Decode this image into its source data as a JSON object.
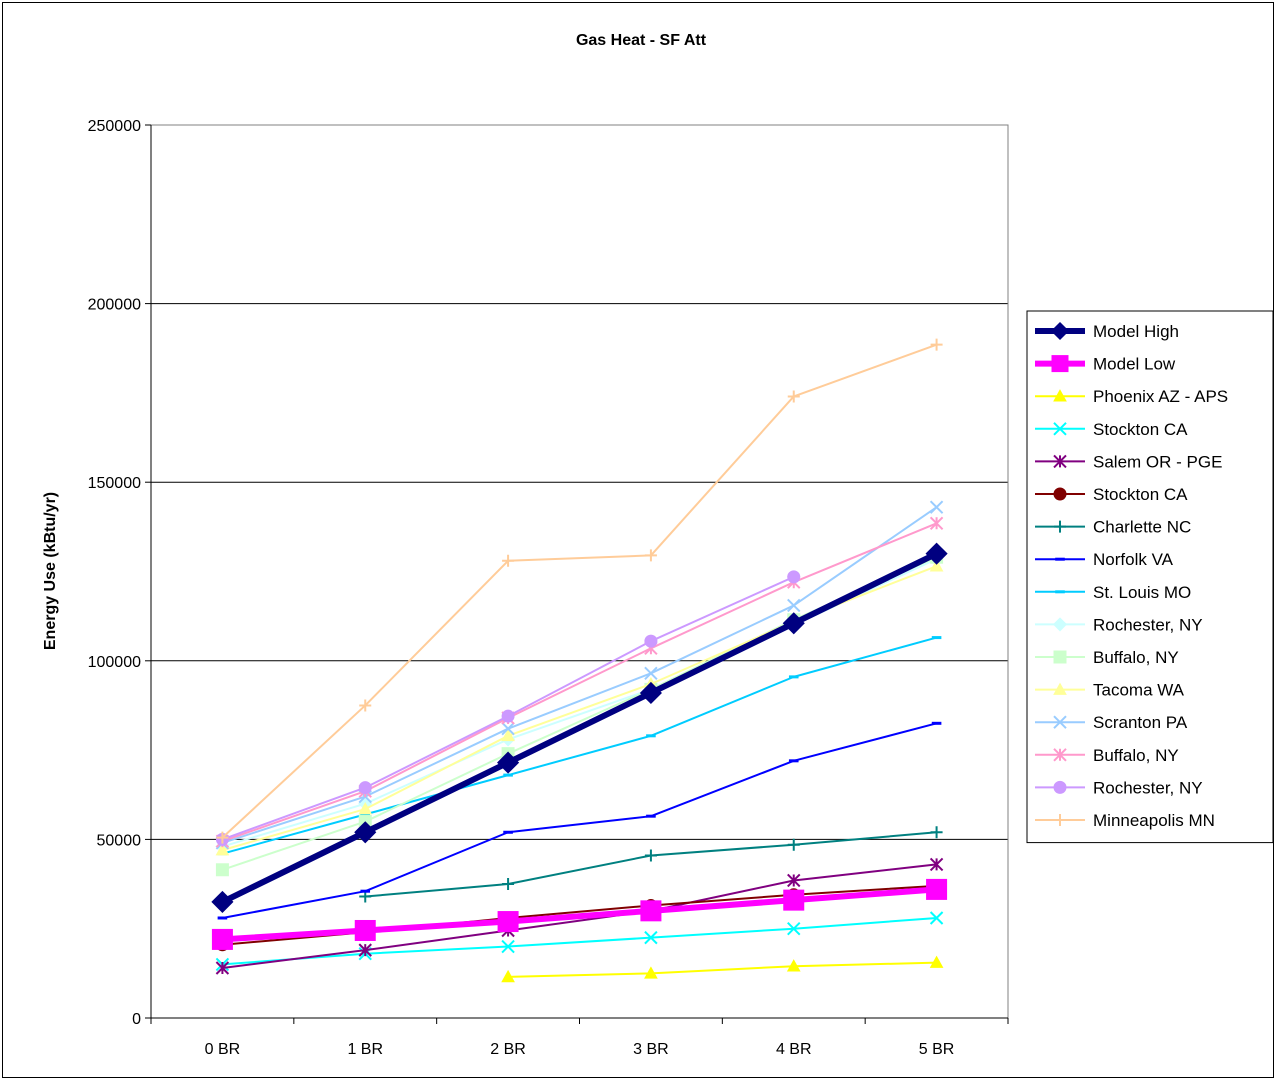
{
  "chart_data": {
    "type": "line",
    "title": "Gas Heat - SF Att",
    "xlabel": "",
    "ylabel": "Energy Use (kBtu/yr)",
    "categories": [
      "0 BR",
      "1 BR",
      "2 BR",
      "3 BR",
      "4 BR",
      "5 BR"
    ],
    "ylim": [
      0,
      250000
    ],
    "yticks": [
      0,
      50000,
      100000,
      150000,
      200000,
      250000
    ],
    "ytick_labels": [
      "0",
      "50000",
      "100000",
      "150000",
      "200000",
      "250000"
    ],
    "grid": "horizontal",
    "legend_position": "right",
    "series": [
      {
        "name": "Model High",
        "color": "#000080",
        "marker": "diamond",
        "bold": true,
        "values": [
          32500,
          52000,
          71500,
          91000,
          110500,
          130000
        ]
      },
      {
        "name": "Model Low",
        "color": "#ff00ff",
        "marker": "square",
        "bold": true,
        "values": [
          22000,
          24500,
          27000,
          30000,
          33000,
          36000
        ]
      },
      {
        "name": "Phoenix AZ - APS",
        "color": "#ffff00",
        "marker": "triangle",
        "values": [
          null,
          null,
          11500,
          12500,
          14500,
          15500
        ]
      },
      {
        "name": "Stockton CA",
        "color": "#00ffff",
        "marker": "x",
        "values": [
          15000,
          18000,
          20000,
          22500,
          25000,
          28000
        ]
      },
      {
        "name": "Salem OR - PGE",
        "color": "#800080",
        "marker": "asterisk",
        "values": [
          14000,
          19000,
          24500,
          30000,
          38500,
          43000
        ]
      },
      {
        "name": "Stockton CA",
        "color": "#800000",
        "marker": "circle",
        "values": [
          20500,
          24000,
          28000,
          31500,
          34500,
          37000
        ]
      },
      {
        "name": "Charlette NC",
        "color": "#008080",
        "marker": "plus",
        "values": [
          null,
          34000,
          37500,
          45500,
          48500,
          52000
        ]
      },
      {
        "name": "Norfolk VA",
        "color": "#0000ff",
        "marker": "dash",
        "values": [
          28000,
          35500,
          52000,
          56500,
          72000,
          82500
        ]
      },
      {
        "name": "St. Louis MO",
        "color": "#00ccff",
        "marker": "dash",
        "values": [
          46000,
          57000,
          68000,
          79000,
          95500,
          106500
        ]
      },
      {
        "name": "Rochester, NY",
        "color": "#ccffff",
        "marker": "diamond",
        "values": [
          48000,
          60000,
          78000,
          92000,
          110000,
          128500
        ]
      },
      {
        "name": "Buffalo, NY",
        "color": "#ccffcc",
        "marker": "square",
        "values": [
          41500,
          55000,
          74000,
          92000,
          111500,
          129000
        ]
      },
      {
        "name": "Tacoma WA",
        "color": "#ffff99",
        "marker": "triangle",
        "values": [
          47000,
          58500,
          79000,
          93500,
          111000,
          126500
        ]
      },
      {
        "name": "Scranton PA",
        "color": "#99ccff",
        "marker": "x",
        "values": [
          49000,
          62000,
          81000,
          96500,
          115500,
          143000
        ]
      },
      {
        "name": "Buffalo, NY",
        "color": "#ff99cc",
        "marker": "asterisk",
        "values": [
          49500,
          63500,
          84000,
          103500,
          122000,
          138500
        ]
      },
      {
        "name": "Rochester, NY",
        "color": "#cc99ff",
        "marker": "circle",
        "values": [
          50000,
          64500,
          84500,
          105500,
          123500,
          null
        ]
      },
      {
        "name": "Minneapolis MN",
        "color": "#ffcc99",
        "marker": "plus",
        "values": [
          50500,
          87500,
          128000,
          129500,
          174000,
          188500
        ]
      }
    ]
  }
}
